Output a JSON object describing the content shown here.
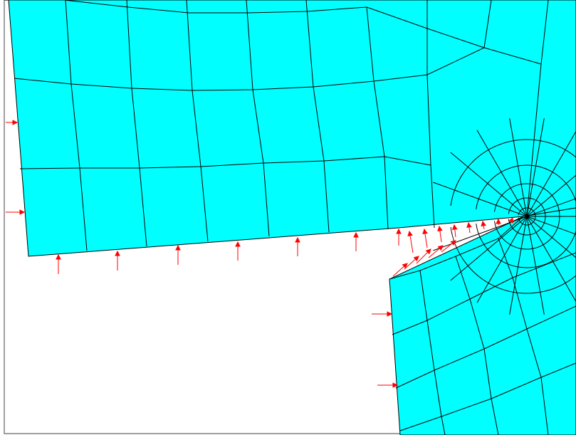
{
  "figure": {
    "kind": "finite-element mesh near crack tip",
    "colors": {
      "background": "#ffffff",
      "mesh_fill": "#00ffff",
      "mesh_lines": "#000000",
      "load_arrows": "#ff0000",
      "frame": "#808080"
    },
    "icons": [
      "crack-tip-node",
      "load-arrow"
    ]
  }
}
